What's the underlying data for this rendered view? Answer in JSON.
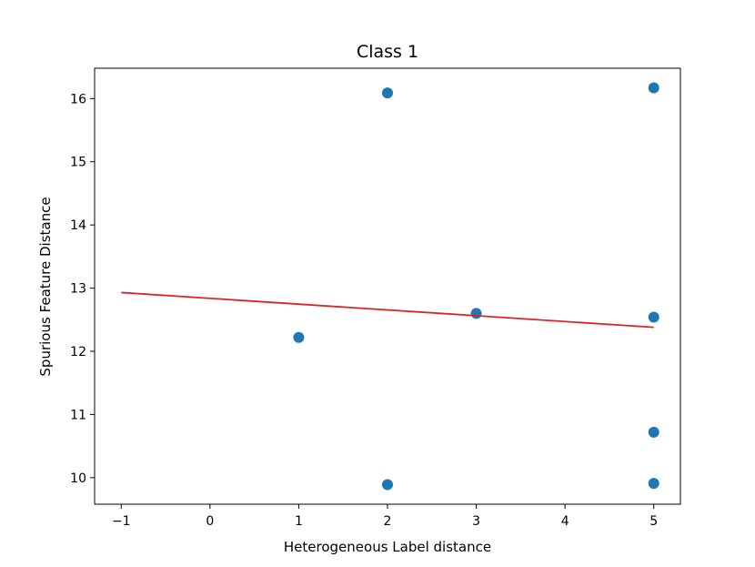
{
  "chart_data": {
    "type": "scatter",
    "title": "Class 1",
    "xlabel": "Heterogeneous Label distance",
    "ylabel": "Spurious Feature Distance",
    "xlim": [
      -1.3,
      5.3
    ],
    "ylim": [
      9.58,
      16.48
    ],
    "x_ticks": [
      -1,
      0,
      1,
      2,
      3,
      4,
      5
    ],
    "x_tick_labels": [
      "−1",
      "0",
      "1",
      "2",
      "3",
      "4",
      "5"
    ],
    "y_ticks": [
      10,
      11,
      12,
      13,
      14,
      15,
      16
    ],
    "y_tick_labels": [
      "10",
      "11",
      "12",
      "13",
      "14",
      "15",
      "16"
    ],
    "grid": false,
    "points": {
      "x": [
        2,
        5,
        3,
        5,
        1,
        5,
        2,
        5
      ],
      "y": [
        16.09,
        16.17,
        12.6,
        12.54,
        12.22,
        10.72,
        9.89,
        9.91
      ],
      "color": "#1f77b4"
    },
    "fit_line": {
      "x": [
        -1,
        5
      ],
      "y": [
        12.93,
        12.38
      ],
      "color": "#d62728"
    }
  }
}
